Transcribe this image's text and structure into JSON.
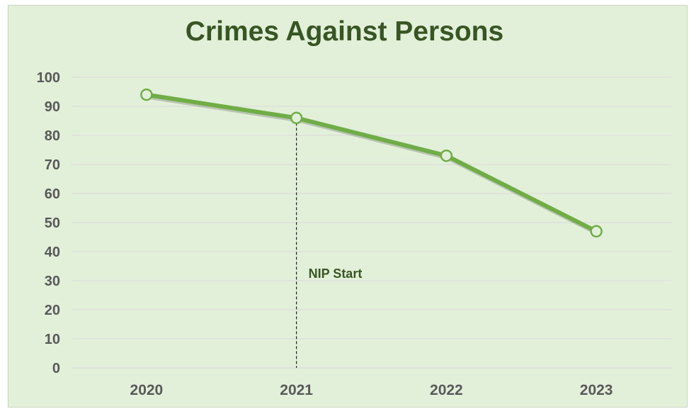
{
  "chart_data": {
    "type": "line",
    "title": "Crimes Against Persons",
    "xlabel": "",
    "ylabel": "",
    "categories": [
      "2020",
      "2021",
      "2022",
      "2023"
    ],
    "series": [
      {
        "values": [
          94,
          86,
          73,
          47
        ]
      }
    ],
    "ylim": [
      0,
      100
    ],
    "yticks": [
      "0",
      "10",
      "20",
      "30",
      "40",
      "50",
      "60",
      "70",
      "80",
      "90",
      "100"
    ],
    "grid": true,
    "legend": "none",
    "annotations": [
      {
        "text": "NIP Start",
        "x": "2021",
        "style": "dashed-vertical-line"
      }
    ],
    "colors": {
      "background": "#e2efd9",
      "line": "#70ad47",
      "marker_fill": "#e2efd9",
      "title": "#375623",
      "grid": "#d9d9d9"
    }
  }
}
